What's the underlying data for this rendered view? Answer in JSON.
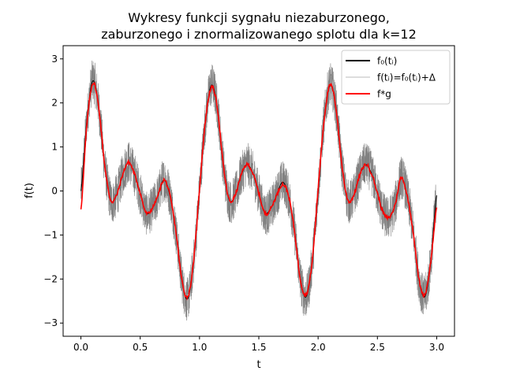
{
  "chart_data": {
    "type": "line",
    "title_lines": [
      "Wykresy funkcji sygnału niezaburzonego,",
      "zaburzonego i znormalizowanego splotu dla k=12"
    ],
    "xlabel": "t",
    "ylabel": "f(t)",
    "xlim": [
      -0.15,
      3.15
    ],
    "ylim": [
      -3.3,
      3.3
    ],
    "x_ticks": [
      0.0,
      0.5,
      1.0,
      1.5,
      2.0,
      2.5,
      3.0
    ],
    "x_tick_labels": [
      "0.0",
      "0.5",
      "1.0",
      "1.5",
      "2.0",
      "2.5",
      "3.0"
    ],
    "y_ticks": [
      -3,
      -2,
      -1,
      0,
      1,
      2,
      3
    ],
    "y_tick_labels": [
      "−3",
      "−2",
      "−1",
      "0",
      "1",
      "2",
      "3"
    ],
    "grid": false,
    "legend_position": "top-right",
    "series": [
      {
        "name": "f₀(tᵢ)",
        "color": "#000000",
        "legend_color": "#000000",
        "style": "clean signal (hidden beneath noisy band)",
        "x": [
          0.0,
          0.05,
          0.1,
          0.15,
          0.2,
          0.25,
          0.3,
          0.35,
          0.4,
          0.45,
          0.5,
          0.55,
          0.6,
          0.65,
          0.7,
          0.75,
          0.8,
          0.85,
          0.9,
          0.95,
          1.0,
          1.05,
          1.1,
          1.15,
          1.2,
          1.25,
          1.3,
          1.35,
          1.4,
          1.45,
          1.5,
          1.55,
          1.6,
          1.65,
          1.7,
          1.75,
          1.8,
          1.85,
          1.9,
          1.95,
          2.0,
          2.05,
          2.1,
          2.15,
          2.2,
          2.25,
          2.3,
          2.35,
          2.4,
          2.45,
          2.5,
          2.55,
          2.6,
          2.65,
          2.7,
          2.75,
          2.8,
          2.85,
          2.9,
          2.95,
          3.0
        ],
        "y": [
          0.0,
          1.6,
          2.5,
          1.9,
          0.6,
          -0.2,
          -0.1,
          0.35,
          0.65,
          0.4,
          -0.05,
          -0.5,
          -0.4,
          -0.1,
          0.25,
          -0.1,
          -0.9,
          -2.0,
          -2.45,
          -1.6,
          0.0,
          1.6,
          2.4,
          1.9,
          0.6,
          -0.2,
          -0.1,
          0.35,
          0.6,
          0.4,
          -0.05,
          -0.5,
          -0.4,
          -0.1,
          0.2,
          -0.1,
          -0.9,
          -2.0,
          -2.4,
          -1.6,
          0.0,
          1.6,
          2.4,
          1.9,
          0.6,
          -0.2,
          -0.1,
          0.35,
          0.6,
          0.4,
          -0.05,
          -0.5,
          -0.6,
          -0.3,
          0.3,
          -0.1,
          -0.9,
          -2.0,
          -2.4,
          -1.6,
          -0.1
        ]
      },
      {
        "name": "f(tᵢ)=f₀(tᵢ)+Δ",
        "color": "#808080",
        "legend_color": "#dddddd",
        "style": "clean signal plus uniform noise of amplitude ~0.5 (dense vertical band)",
        "noise_amplitude": 0.5
      },
      {
        "name": "f*g",
        "color": "#ff0000",
        "legend_color": "#ff0000",
        "x": [
          0.0,
          0.05,
          0.1,
          0.15,
          0.2,
          0.25,
          0.3,
          0.35,
          0.4,
          0.45,
          0.5,
          0.55,
          0.6,
          0.65,
          0.7,
          0.75,
          0.8,
          0.85,
          0.9,
          0.95,
          1.0,
          1.05,
          1.1,
          1.15,
          1.2,
          1.25,
          1.3,
          1.35,
          1.4,
          1.45,
          1.5,
          1.55,
          1.6,
          1.65,
          1.7,
          1.75,
          1.8,
          1.85,
          1.9,
          1.95,
          2.0,
          2.05,
          2.1,
          2.15,
          2.2,
          2.25,
          2.3,
          2.35,
          2.4,
          2.45,
          2.5,
          2.55,
          2.6,
          2.65,
          2.7,
          2.75,
          2.8,
          2.85,
          2.9,
          2.95,
          3.0
        ],
        "y": [
          -0.4,
          1.5,
          2.45,
          1.9,
          0.6,
          -0.2,
          -0.1,
          0.35,
          0.65,
          0.4,
          -0.05,
          -0.5,
          -0.4,
          -0.1,
          0.25,
          -0.1,
          -0.9,
          -2.0,
          -2.4,
          -1.6,
          0.05,
          1.6,
          2.35,
          1.9,
          0.6,
          -0.2,
          -0.1,
          0.35,
          0.6,
          0.4,
          -0.05,
          -0.5,
          -0.4,
          -0.1,
          0.15,
          -0.1,
          -0.9,
          -2.0,
          -2.35,
          -1.6,
          0.05,
          1.6,
          2.4,
          1.9,
          0.6,
          -0.2,
          -0.1,
          0.35,
          0.6,
          0.4,
          -0.05,
          -0.5,
          -0.6,
          -0.3,
          0.3,
          -0.1,
          -0.9,
          -2.0,
          -2.35,
          -1.6,
          -0.4
        ]
      }
    ]
  }
}
